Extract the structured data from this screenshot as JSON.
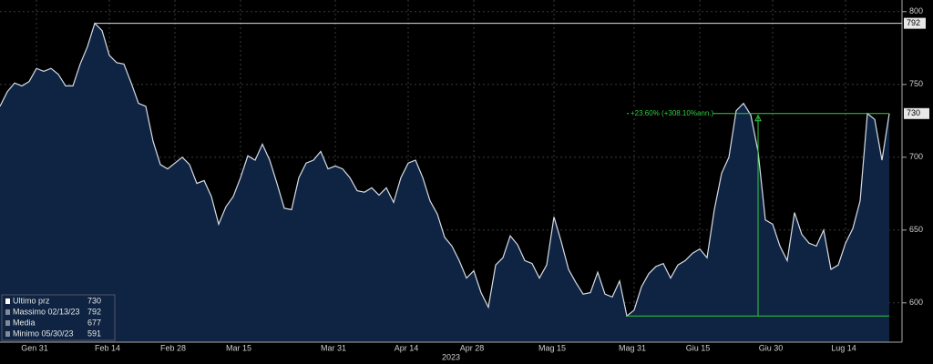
{
  "chart_data": {
    "type": "area",
    "xlabel": "2023",
    "categories": [
      null,
      null,
      null,
      null,
      null,
      "Gen 31",
      null,
      null,
      null,
      null,
      null,
      null,
      null,
      null,
      null,
      "Feb 14",
      null,
      null,
      null,
      null,
      null,
      null,
      null,
      null,
      "Feb 28",
      null,
      null,
      null,
      null,
      null,
      null,
      null,
      null,
      "Mar 15",
      null,
      null,
      null,
      null,
      null,
      null,
      null,
      null,
      null,
      null,
      null,
      null,
      "Mar 31",
      null,
      null,
      null,
      null,
      null,
      null,
      null,
      null,
      null,
      "Apr 14",
      null,
      null,
      null,
      null,
      null,
      null,
      null,
      null,
      "Apr 28",
      null,
      null,
      null,
      null,
      null,
      null,
      null,
      null,
      null,
      null,
      "Mag 15",
      null,
      null,
      null,
      null,
      null,
      null,
      null,
      null,
      null,
      null,
      "Mag 31",
      null,
      null,
      null,
      null,
      null,
      null,
      null,
      null,
      "Giu 15",
      null,
      null,
      null,
      null,
      null,
      null,
      null,
      null,
      null,
      "Giu 30",
      null,
      null,
      null,
      null,
      null,
      null,
      null,
      null,
      null,
      "Lug 14",
      null,
      null,
      null,
      null,
      null,
      null
    ],
    "series": [
      {
        "color": "#0e2442",
        "values": [
          735,
          745,
          751,
          749,
          752,
          761,
          759,
          761,
          757,
          749,
          749,
          764,
          776,
          792,
          787,
          770,
          765,
          764,
          751,
          737,
          735,
          711,
          695,
          692,
          696,
          700,
          695,
          682,
          684,
          673,
          654,
          666,
          673,
          686,
          701,
          698,
          709,
          698,
          682,
          665,
          664,
          686,
          696,
          698,
          704,
          692,
          694,
          692,
          686,
          677,
          676,
          679,
          674,
          679,
          669,
          686,
          696,
          698,
          686,
          670,
          661,
          645,
          639,
          629,
          617,
          622,
          607,
          597,
          626,
          631,
          646,
          640,
          629,
          627,
          617,
          626,
          659,
          642,
          623,
          614,
          606,
          607,
          621,
          606,
          604,
          615,
          591,
          595,
          611,
          620,
          625,
          627,
          617,
          626,
          629,
          634,
          637,
          631,
          664,
          689,
          700,
          732,
          737,
          729,
          704,
          657,
          654,
          639,
          629,
          662,
          647,
          641,
          639,
          650,
          623,
          626,
          641,
          651,
          670,
          730,
          726,
          698,
          730
        ]
      }
    ],
    "ylim": [
      573,
      808
    ],
    "yticks": [
      600,
      650,
      700,
      750,
      800
    ],
    "grid": true,
    "stats": [
      {
        "label": "Ultimo prz",
        "value": 730
      },
      {
        "label": "Massimo 02/13/23",
        "value": 792
      },
      {
        "label": "Media",
        "value": 677
      },
      {
        "label": "Minimo 05/30/23",
        "value": 591
      }
    ],
    "change_label": "+23.60% (+308.10%ann.)"
  }
}
